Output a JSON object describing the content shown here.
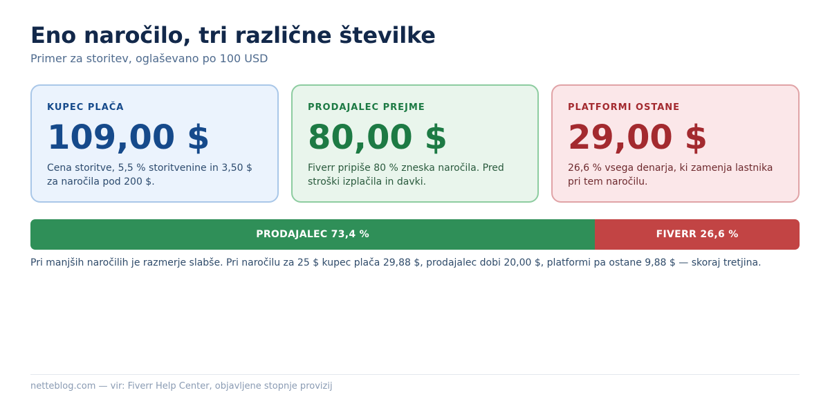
{
  "header": {
    "title": "Eno naročilo, tri različne številke",
    "subtitle": "Primer za storitev, oglaševano po 100 USD"
  },
  "cards": {
    "buyer": {
      "label": "KUPEC PLAČA",
      "amount": "109,00 $",
      "description": "Cena storitve, 5,5 % storitvenine in 3,50 $ za naročila pod 200 $."
    },
    "seller": {
      "label": "PRODAJALEC PREJME",
      "amount": "80,00 $",
      "description": "Fiverr pripiše 80 % zneska naročila. Pred stroški izplačila in davki."
    },
    "platform": {
      "label": "PLATFORMI OSTANE",
      "amount": "29,00 $",
      "description": "26,6 % vsega denarja, ki zamenja lastnika pri tem naročilu."
    }
  },
  "split_bar": {
    "seller_label": "PRODAJALEC 73,4 %",
    "seller_share": 73.4,
    "fiverr_label": "FIVERR 26,6 %",
    "fiverr_share": 26.6
  },
  "note": "Pri manjših naročilih je razmerje slabše. Pri naročilu za 25 $ kupec plača 29,88 $, prodajalec dobi 20,00 $, platformi pa ostane 9,88 $ — skoraj tretjina.",
  "footer": "netteblog.com — vir: Fiverr Help Center, objavljene stopnje provizij",
  "colors": {
    "buyer_accent": "#164a8b",
    "seller_accent": "#1d7a44",
    "platform_accent": "#a32a2f",
    "bar_seller": "#2f8f58",
    "bar_fiverr": "#c24444"
  }
}
